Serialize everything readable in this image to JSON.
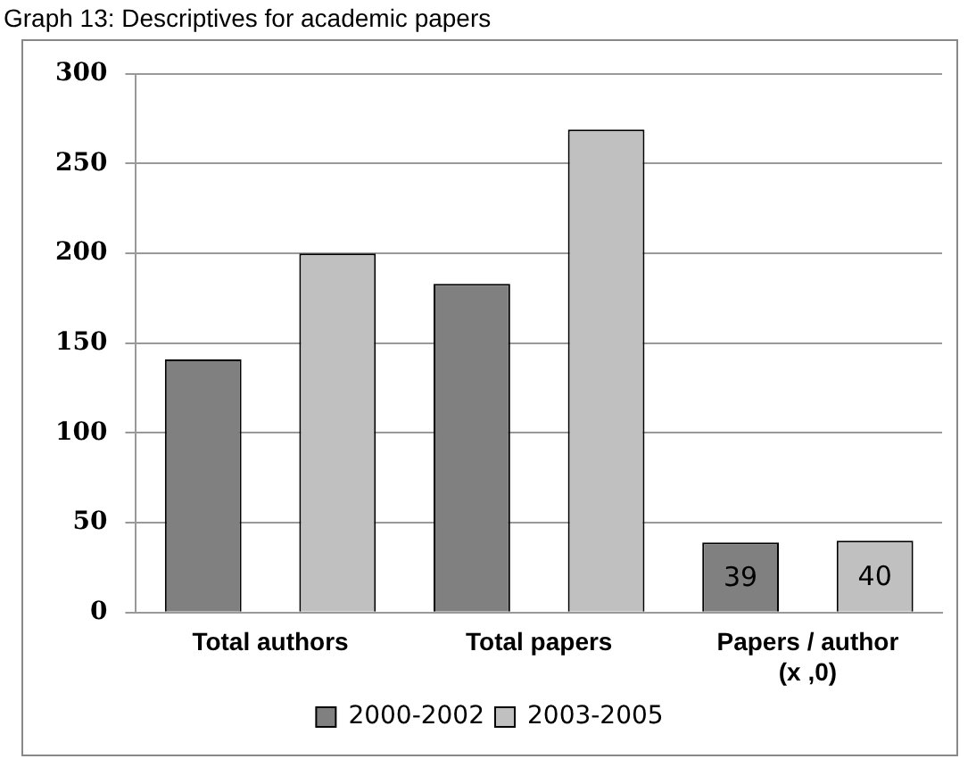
{
  "chart_data": {
    "type": "bar",
    "title": "Graph 13: Descriptives for academic papers",
    "categories": [
      "Total authors",
      "Total papers",
      "Papers / author\n(x ,0)"
    ],
    "series": [
      {
        "name": "2000-2002",
        "color": "#808080",
        "values": [
          141,
          183,
          39
        ],
        "value_labels": [
          null,
          null,
          "39"
        ]
      },
      {
        "name": "2003-2005",
        "color": "#c0c0c0",
        "values": [
          200,
          269,
          40
        ],
        "value_labels": [
          null,
          null,
          "40"
        ]
      }
    ],
    "ylim": [
      0,
      300
    ],
    "yticks": [
      0,
      50,
      100,
      150,
      200,
      250,
      300
    ],
    "grid": "y",
    "legend": "bottom"
  }
}
